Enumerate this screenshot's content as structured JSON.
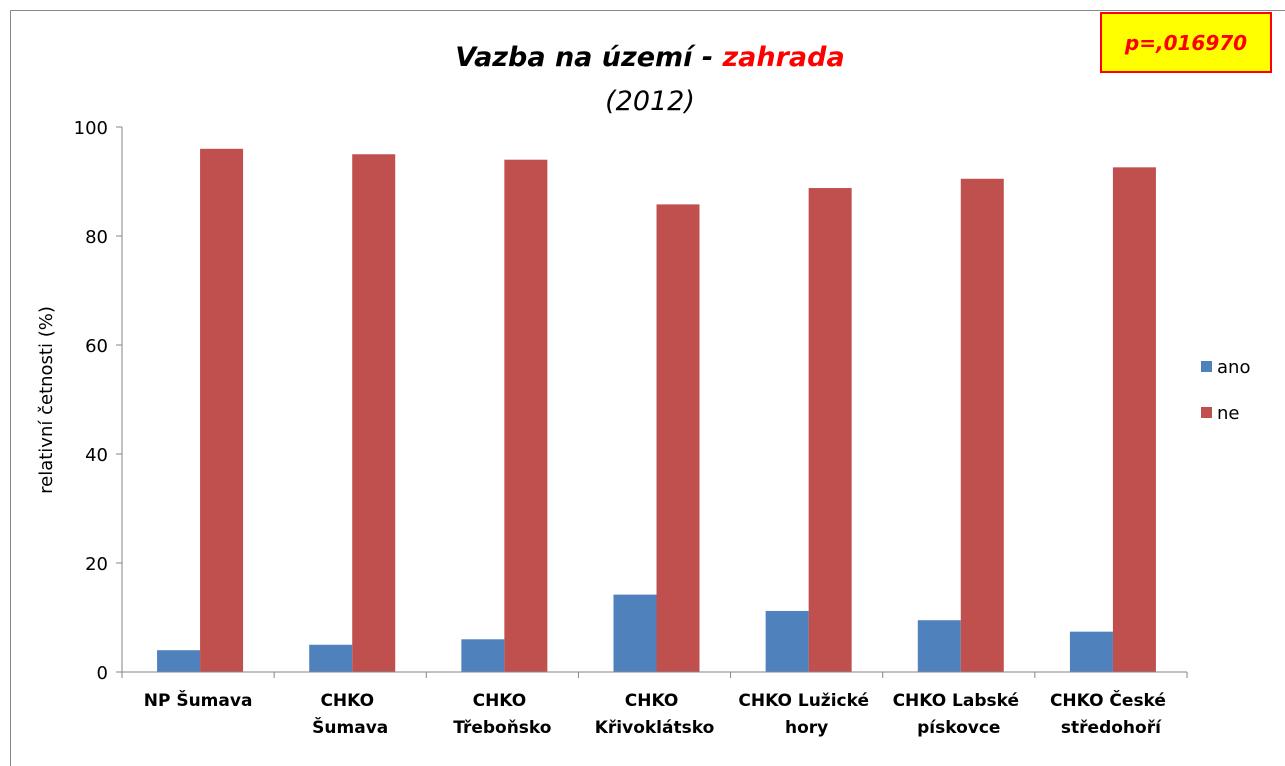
{
  "chart_data": {
    "type": "bar",
    "title": "Vazba na území - ",
    "title_highlight": "zahrada",
    "subtitle": "(2012)",
    "annotation": "p=,016970",
    "y_label": "relativní četnosti (%)",
    "categories": [
      "NP Šumava",
      "CHKO\nŠumava",
      "CHKO\nTřeboňsko",
      "CHKO\nKřivoklátsko",
      "CHKO Lužické\nhory",
      "CHKO Labské\npískovce",
      "CHKO České\nstředohoří"
    ],
    "series": [
      {
        "name": "ano",
        "color": "#4f81bd",
        "values": [
          4.0,
          5.0,
          6.0,
          14.2,
          11.2,
          9.5,
          7.4
        ]
      },
      {
        "name": "ne",
        "color": "#c0504d",
        "values": [
          96.0,
          95.0,
          94.0,
          85.8,
          88.8,
          90.5,
          92.6
        ]
      }
    ],
    "ylim": [
      0,
      100
    ],
    "yticks": [
      0,
      20,
      40,
      60,
      80,
      100
    ],
    "grid": false,
    "legend": "right"
  }
}
